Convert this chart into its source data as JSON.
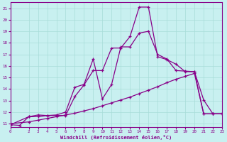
{
  "xlabel": "Windchill (Refroidissement éolien,°C)",
  "background_color": "#c8f0f0",
  "line_color": "#880088",
  "grid_color": "#a8dcd8",
  "xlim": [
    0,
    23
  ],
  "ylim": [
    10.7,
    21.5
  ],
  "yticks": [
    11,
    12,
    13,
    14,
    15,
    16,
    17,
    18,
    19,
    20,
    21
  ],
  "xticks": [
    0,
    2,
    3,
    4,
    5,
    6,
    7,
    8,
    9,
    10,
    11,
    12,
    13,
    14,
    15,
    16,
    17,
    18,
    19,
    20,
    21,
    22,
    23
  ],
  "line1_x": [
    0,
    1,
    2,
    3,
    4,
    5,
    6,
    7,
    8,
    9,
    10,
    11,
    12,
    13,
    14,
    15,
    16,
    17,
    18,
    19,
    20,
    21,
    22,
    23
  ],
  "line1_y": [
    10.9,
    10.85,
    11.6,
    11.6,
    11.7,
    11.75,
    12.0,
    14.15,
    14.4,
    16.6,
    13.15,
    14.4,
    17.65,
    17.65,
    18.85,
    19.0,
    17.0,
    16.6,
    15.6,
    15.55,
    15.5,
    11.85,
    11.85,
    11.85
  ],
  "line2_x": [
    0,
    2,
    3,
    4,
    5,
    6,
    7,
    8,
    9,
    10,
    11,
    12,
    13,
    14,
    15,
    16,
    17,
    18,
    19,
    20,
    21,
    22,
    23
  ],
  "line2_y": [
    10.9,
    11.6,
    11.75,
    11.7,
    11.7,
    11.7,
    13.35,
    14.35,
    15.6,
    15.6,
    17.55,
    17.55,
    18.55,
    21.1,
    21.1,
    16.8,
    16.55,
    16.15,
    15.5,
    15.5,
    13.05,
    11.85,
    11.85
  ],
  "line3_x": [
    0,
    2,
    3,
    4,
    5,
    6,
    7,
    8,
    9,
    10,
    11,
    12,
    13,
    14,
    15,
    16,
    17,
    18,
    19,
    20,
    21,
    22,
    23
  ],
  "line3_y": [
    11.0,
    11.15,
    11.3,
    11.45,
    11.6,
    11.75,
    11.9,
    12.1,
    12.3,
    12.55,
    12.8,
    13.05,
    13.3,
    13.6,
    13.9,
    14.2,
    14.55,
    14.85,
    15.1,
    15.35,
    11.85,
    11.85,
    11.85
  ]
}
